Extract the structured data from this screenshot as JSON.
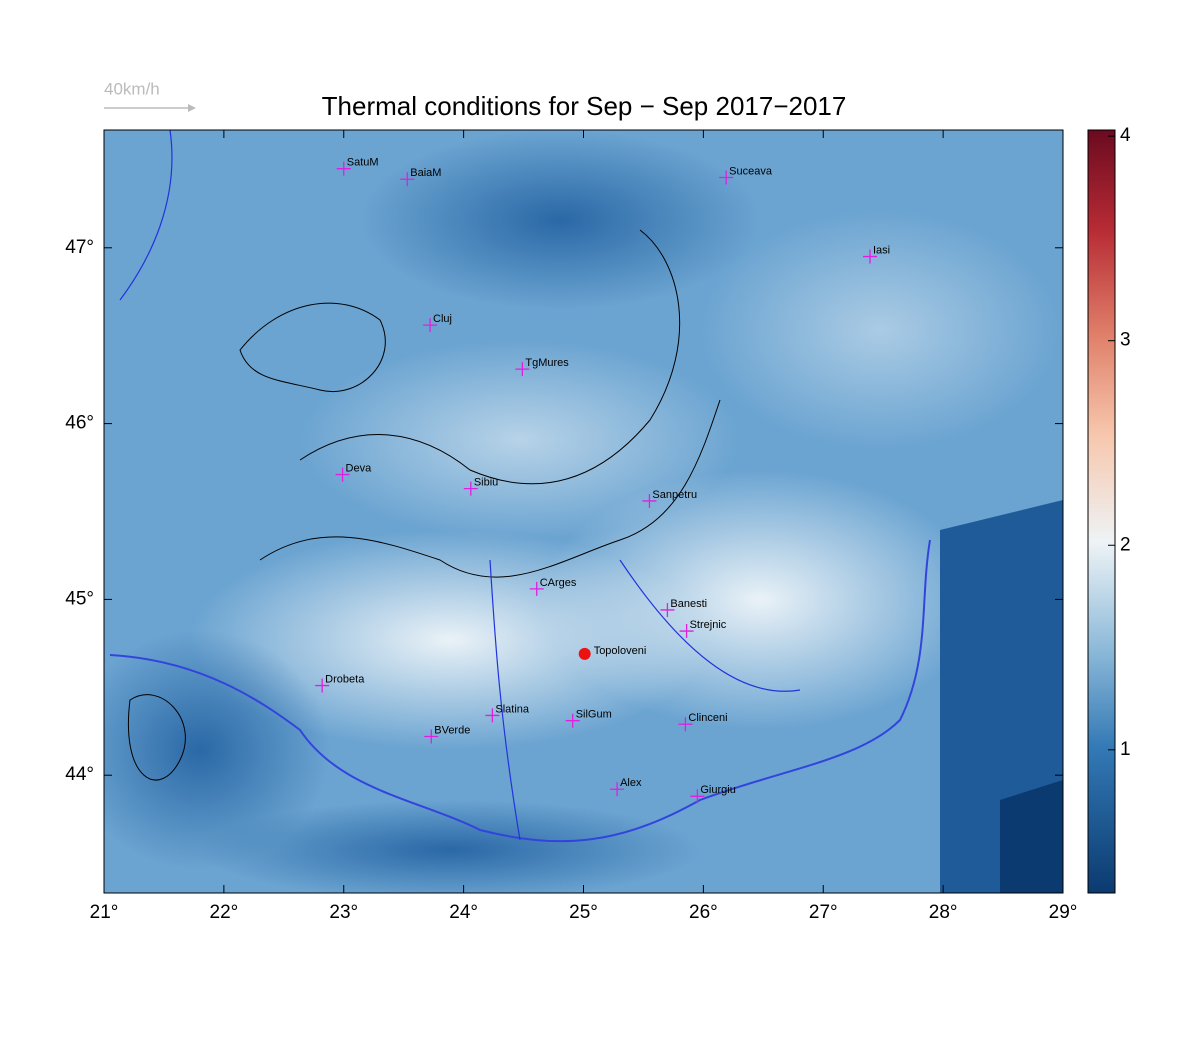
{
  "title": "Thermal conditions for Sep − Sep  2017−2017",
  "wind_legend": "40km/h",
  "xlim": [
    21,
    29
  ],
  "ylim": [
    43.33,
    47.67
  ],
  "xticks": [
    {
      "value": 21,
      "label": "21°"
    },
    {
      "value": 22,
      "label": "22°"
    },
    {
      "value": 23,
      "label": "23°"
    },
    {
      "value": 24,
      "label": "24°"
    },
    {
      "value": 25,
      "label": "25°"
    },
    {
      "value": 26,
      "label": "26°"
    },
    {
      "value": 27,
      "label": "27°"
    },
    {
      "value": 28,
      "label": "28°"
    },
    {
      "value": 29,
      "label": "29°"
    }
  ],
  "yticks": [
    {
      "value": 44,
      "label": "44°"
    },
    {
      "value": 45,
      "label": "45°"
    },
    {
      "value": 46,
      "label": "46°"
    },
    {
      "value": 47,
      "label": "47°"
    }
  ],
  "colorbar": {
    "lim": [
      0.3,
      4.03
    ],
    "ticks": [
      1,
      2,
      3,
      4
    ]
  },
  "cities": [
    {
      "name": "SatuM",
      "lon": 23.0,
      "lat": 47.45
    },
    {
      "name": "BaiaM",
      "lon": 23.53,
      "lat": 47.39
    },
    {
      "name": "Suceava",
      "lon": 26.19,
      "lat": 47.4
    },
    {
      "name": "Iasi",
      "lon": 27.39,
      "lat": 46.95
    },
    {
      "name": "Cluj",
      "lon": 23.72,
      "lat": 46.56
    },
    {
      "name": "TgMures",
      "lon": 24.49,
      "lat": 46.31
    },
    {
      "name": "Deva",
      "lon": 22.99,
      "lat": 45.71
    },
    {
      "name": "Sibiu",
      "lon": 24.06,
      "lat": 45.63
    },
    {
      "name": "Sanpetru",
      "lon": 25.55,
      "lat": 45.56
    },
    {
      "name": "CArges",
      "lon": 24.61,
      "lat": 45.06
    },
    {
      "name": "Banesti",
      "lon": 25.7,
      "lat": 44.94
    },
    {
      "name": "Strejnic",
      "lon": 25.86,
      "lat": 44.82
    },
    {
      "name": "Drobeta",
      "lon": 22.82,
      "lat": 44.51
    },
    {
      "name": "Slatina",
      "lon": 24.24,
      "lat": 44.34
    },
    {
      "name": "SilGum",
      "lon": 24.91,
      "lat": 44.31
    },
    {
      "name": "Clinceni",
      "lon": 25.85,
      "lat": 44.29
    },
    {
      "name": "BVerde",
      "lon": 23.73,
      "lat": 44.22
    },
    {
      "name": "Alex",
      "lon": 25.28,
      "lat": 43.92
    },
    {
      "name": "Giurgiu",
      "lon": 25.95,
      "lat": 43.88
    }
  ],
  "highlight": {
    "name": "Topoloveni",
    "lon": 25.01,
    "lat": 44.69
  }
}
